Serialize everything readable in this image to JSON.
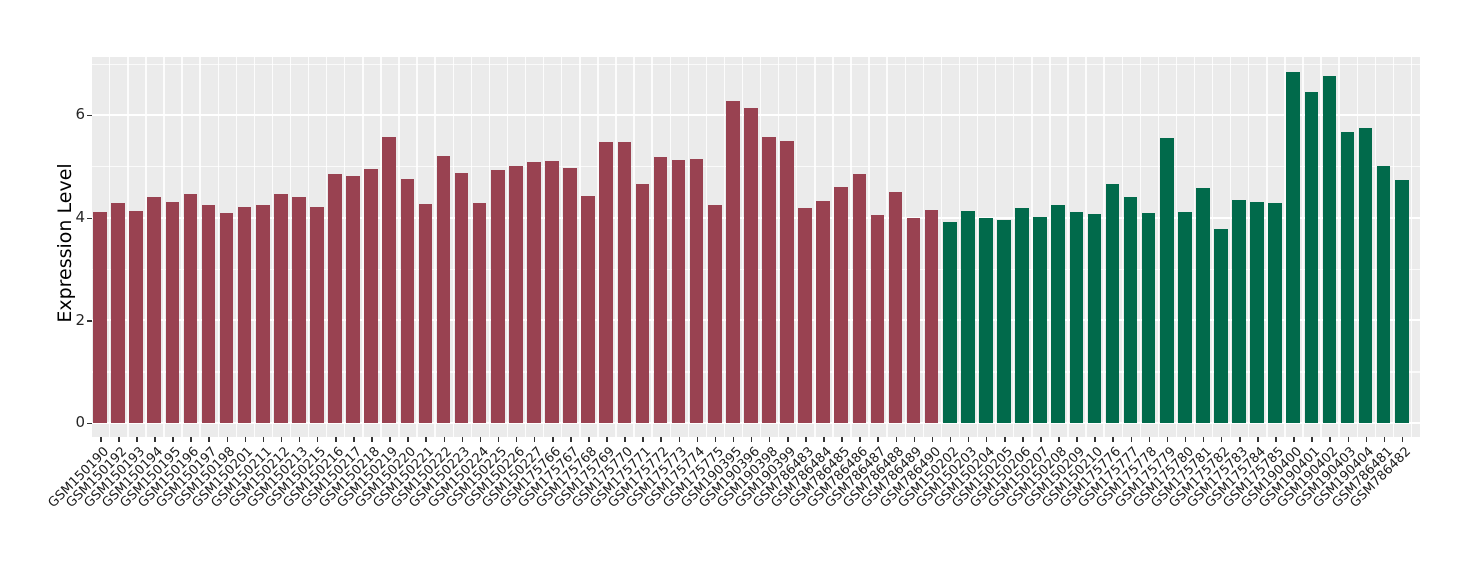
{
  "chart_data": {
    "type": "bar",
    "title": "",
    "xlabel": "",
    "ylabel": "Expression Level",
    "ylim": [
      0,
      7.2
    ],
    "yticks": [
      0,
      2,
      4,
      6
    ],
    "grid": "on",
    "legend_position": "none",
    "panel_background": "#EBEBEB",
    "gridline_color": "#FFFFFF",
    "axis_text_color": "#262626",
    "group_colors": {
      "group1": "#994251",
      "group2": "#016A4B"
    },
    "categories": [
      "GSM150190",
      "GSM150192",
      "GSM150193",
      "GSM150194",
      "GSM150195",
      "GSM150196",
      "GSM150197",
      "GSM150198",
      "GSM150201",
      "GSM150211",
      "GSM150212",
      "GSM150213",
      "GSM150215",
      "GSM150216",
      "GSM150217",
      "GSM150218",
      "GSM150219",
      "GSM150220",
      "GSM150221",
      "GSM150222",
      "GSM150223",
      "GSM150224",
      "GSM150225",
      "GSM150226",
      "GSM150227",
      "GSM175766",
      "GSM175767",
      "GSM175768",
      "GSM175769",
      "GSM175770",
      "GSM175771",
      "GSM175772",
      "GSM175773",
      "GSM175774",
      "GSM175775",
      "GSM190395",
      "GSM190396",
      "GSM190398",
      "GSM190399",
      "GSM786483",
      "GSM786484",
      "GSM786485",
      "GSM786486",
      "GSM786487",
      "GSM786488",
      "GSM786489",
      "GSM786490",
      "GSM150202",
      "GSM150203",
      "GSM150204",
      "GSM150205",
      "GSM150206",
      "GSM150207",
      "GSM150208",
      "GSM150209",
      "GSM150210",
      "GSM175776",
      "GSM175777",
      "GSM175778",
      "GSM175779",
      "GSM175780",
      "GSM175781",
      "GSM175782",
      "GSM175783",
      "GSM175784",
      "GSM175785",
      "GSM190400",
      "GSM190401",
      "GSM190402",
      "GSM190403",
      "GSM190404",
      "GSM786481",
      "GSM786482"
    ],
    "values": [
      4.1,
      4.28,
      4.12,
      4.4,
      4.31,
      4.46,
      4.25,
      4.08,
      4.21,
      4.24,
      4.46,
      4.39,
      4.21,
      4.84,
      4.8,
      4.95,
      5.57,
      4.76,
      4.27,
      5.19,
      4.87,
      4.29,
      4.93,
      5.01,
      5.09,
      5.1,
      4.97,
      4.42,
      5.47,
      5.47,
      4.66,
      5.18,
      5.12,
      5.15,
      4.25,
      6.27,
      6.14,
      5.57,
      5.5,
      4.18,
      4.33,
      4.6,
      4.84,
      4.05,
      4.5,
      4.0,
      4.14,
      3.92,
      4.12,
      4.0,
      3.96,
      4.19,
      4.01,
      4.25,
      4.1,
      4.07,
      4.65,
      4.39,
      4.09,
      5.55,
      4.1,
      4.58,
      3.78,
      4.34,
      4.3,
      4.28,
      6.83,
      6.45,
      6.75,
      5.67,
      5.74,
      5.0,
      4.74
    ],
    "groups": [
      "group1",
      "group1",
      "group1",
      "group1",
      "group1",
      "group1",
      "group1",
      "group1",
      "group1",
      "group1",
      "group1",
      "group1",
      "group1",
      "group1",
      "group1",
      "group1",
      "group1",
      "group1",
      "group1",
      "group1",
      "group1",
      "group1",
      "group1",
      "group1",
      "group1",
      "group1",
      "group1",
      "group1",
      "group1",
      "group1",
      "group1",
      "group1",
      "group1",
      "group1",
      "group1",
      "group1",
      "group1",
      "group1",
      "group1",
      "group1",
      "group1",
      "group1",
      "group1",
      "group1",
      "group1",
      "group1",
      "group1",
      "group2",
      "group2",
      "group2",
      "group2",
      "group2",
      "group2",
      "group2",
      "group2",
      "group2",
      "group2",
      "group2",
      "group2",
      "group2",
      "group2",
      "group2",
      "group2",
      "group2",
      "group2",
      "group2",
      "group2",
      "group2",
      "group2",
      "group2",
      "group2",
      "group2",
      "group2"
    ],
    "ytick_labels": [
      "0",
      "2",
      "4",
      "6"
    ]
  }
}
